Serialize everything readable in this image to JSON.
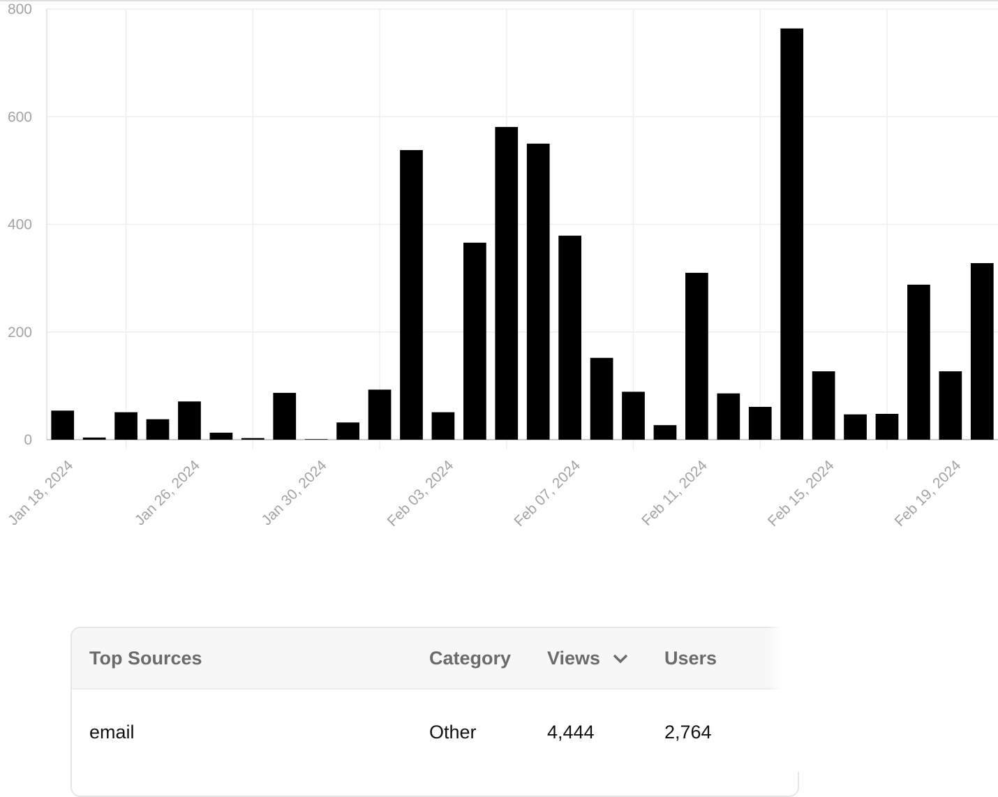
{
  "chart_data": {
    "type": "bar",
    "categories": [
      "Jan 18, 2024",
      null,
      null,
      null,
      "Jan 26, 2024",
      null,
      null,
      null,
      "Jan 30, 2024",
      null,
      null,
      null,
      "Feb 03, 2024",
      null,
      null,
      null,
      "Feb 07, 2024",
      null,
      null,
      null,
      "Feb 11, 2024",
      null,
      null,
      null,
      "Feb 15, 2024",
      null,
      null,
      null,
      "Feb 19, 2024",
      null
    ],
    "values": [
      54,
      4,
      51,
      38,
      71,
      13,
      3,
      87,
      1,
      32,
      93,
      538,
      51,
      366,
      581,
      550,
      379,
      152,
      89,
      27,
      310,
      86,
      61,
      764,
      127,
      47,
      48,
      288,
      127,
      328
    ],
    "color": "#000000",
    "ylim": [
      0,
      800
    ],
    "yticks": [
      0,
      200,
      400,
      600,
      800
    ],
    "grid": true
  },
  "table": {
    "headers": [
      "Top Sources",
      "Category",
      "Views",
      "Users"
    ],
    "rows": [
      [
        "email",
        "Other",
        "4,444",
        "2,764"
      ]
    ]
  }
}
